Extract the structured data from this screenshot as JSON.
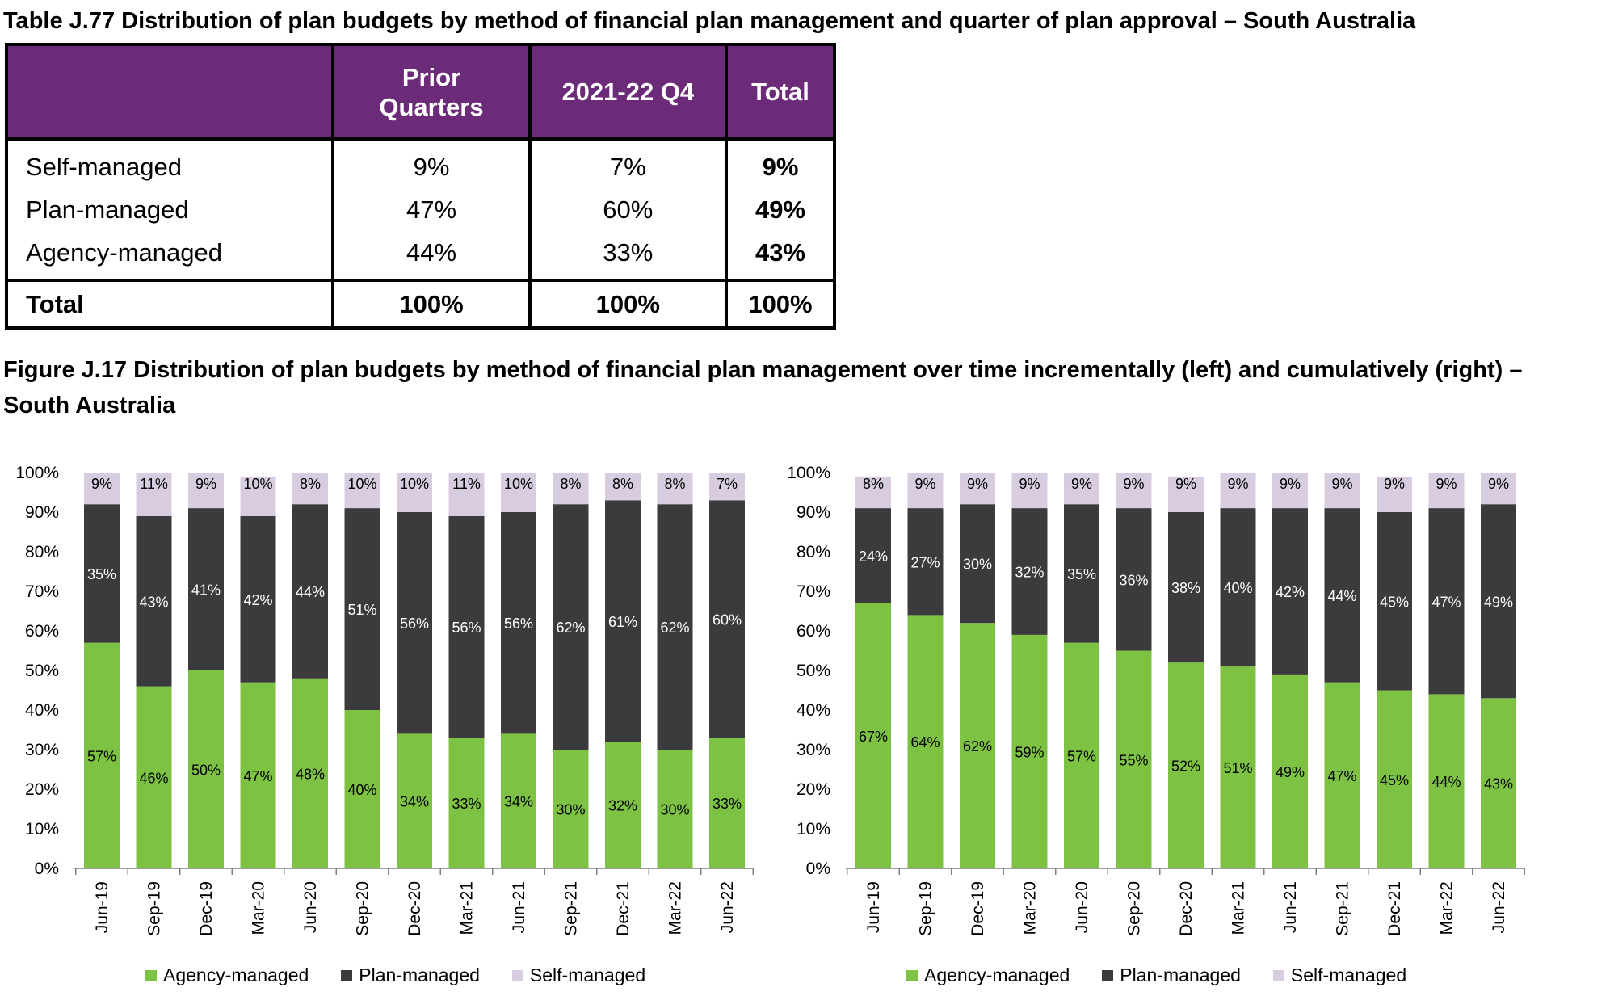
{
  "table": {
    "title": "Table J.77 Distribution of plan budgets by method of financial plan management and quarter of plan approval – South Australia",
    "headers": [
      "",
      "Prior\nQuarters",
      "2021-22 Q4",
      "Total"
    ],
    "rows": [
      {
        "label": "Self-managed",
        "prior": "9%",
        "q4": "7%",
        "total": "9%"
      },
      {
        "label": "Plan-managed",
        "prior": "47%",
        "q4": "60%",
        "total": "49%"
      },
      {
        "label": "Agency-managed",
        "prior": "44%",
        "q4": "33%",
        "total": "43%"
      }
    ],
    "total_row": {
      "label": "Total",
      "prior": "100%",
      "q4": "100%",
      "total": "100%"
    }
  },
  "figure_title": "Figure J.17 Distribution of plan budgets by method of financial plan management over time incrementally (left) and cumulatively (right) – South Australia",
  "colors": {
    "agency": "#7dc242",
    "plan": "#3b3b3d",
    "self": "#d8cce0",
    "header": "#6c2b78"
  },
  "chart_data": [
    {
      "type": "bar",
      "stacked": true,
      "title": "",
      "categories": [
        "Jun-19",
        "Sep-19",
        "Dec-19",
        "Mar-20",
        "Jun-20",
        "Sep-20",
        "Dec-20",
        "Mar-21",
        "Jun-21",
        "Sep-21",
        "Dec-21",
        "Mar-22",
        "Jun-22"
      ],
      "series": [
        {
          "name": "Agency-managed",
          "values": [
            57,
            46,
            50,
            47,
            48,
            40,
            34,
            33,
            34,
            30,
            32,
            30,
            33
          ]
        },
        {
          "name": "Plan-managed",
          "values": [
            35,
            43,
            41,
            42,
            44,
            51,
            56,
            56,
            56,
            62,
            61,
            62,
            60
          ]
        },
        {
          "name": "Self-managed",
          "values": [
            9,
            11,
            9,
            10,
            8,
            10,
            10,
            11,
            10,
            8,
            8,
            8,
            7
          ]
        }
      ],
      "ylim": [
        0,
        100
      ],
      "yticks": [
        "0%",
        "10%",
        "20%",
        "30%",
        "40%",
        "50%",
        "60%",
        "70%",
        "80%",
        "90%",
        "100%"
      ],
      "legend": "bottom"
    },
    {
      "type": "bar",
      "stacked": true,
      "title": "",
      "categories": [
        "Jun-19",
        "Sep-19",
        "Dec-19",
        "Mar-20",
        "Jun-20",
        "Sep-20",
        "Dec-20",
        "Mar-21",
        "Jun-21",
        "Sep-21",
        "Dec-21",
        "Mar-22",
        "Jun-22"
      ],
      "series": [
        {
          "name": "Agency-managed",
          "values": [
            67,
            64,
            62,
            59,
            57,
            55,
            52,
            51,
            49,
            47,
            45,
            44,
            43
          ]
        },
        {
          "name": "Plan-managed",
          "values": [
            24,
            27,
            30,
            32,
            35,
            36,
            38,
            40,
            42,
            44,
            45,
            47,
            49
          ]
        },
        {
          "name": "Self-managed",
          "values": [
            8,
            9,
            9,
            9,
            9,
            9,
            9,
            9,
            9,
            9,
            9,
            9,
            9
          ]
        }
      ],
      "ylim": [
        0,
        100
      ],
      "yticks": [
        "0%",
        "10%",
        "20%",
        "30%",
        "40%",
        "50%",
        "60%",
        "70%",
        "80%",
        "90%",
        "100%"
      ],
      "legend": "bottom"
    }
  ]
}
